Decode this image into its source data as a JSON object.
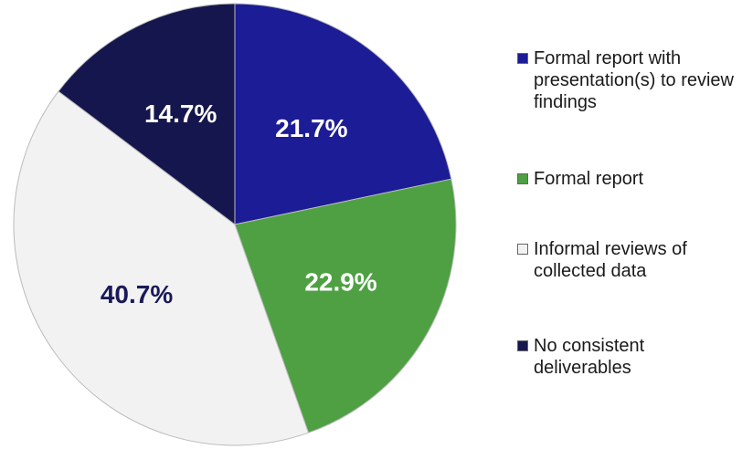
{
  "chart_data": {
    "type": "pie",
    "categories": [
      "Formal report with presentation(s) to review findings",
      "Formal report",
      "Informal reviews of collected data",
      "No consistent deliverables"
    ],
    "values": [
      21.7,
      22.9,
      40.7,
      14.7
    ],
    "value_labels": [
      "21.7%",
      "22.9%",
      "40.7%",
      "14.7%"
    ],
    "colors": [
      "#1c1c96",
      "#4ea043",
      "#f2f2f2",
      "#16164e"
    ],
    "legend": "right"
  }
}
